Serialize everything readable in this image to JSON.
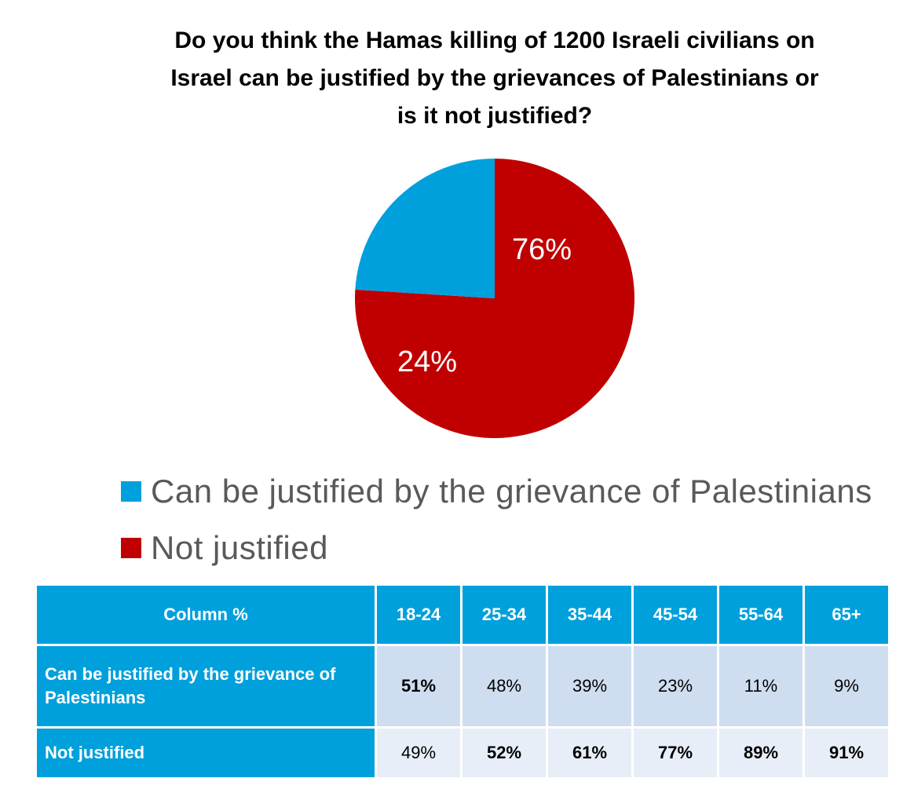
{
  "chart_data": {
    "type": "pie",
    "title_lines": [
      "Do you think the Hamas killing of 1200 Israeli civilians on",
      "Israel can be justified by the grievances of Palestinians or",
      "is it not justified?"
    ],
    "slices": [
      {
        "name": "Can be justified by the grievance of Palestinians",
        "value": 24,
        "label": "24%",
        "color": "#00A0DC"
      },
      {
        "name": "Not justified",
        "value": 76,
        "label": "76%",
        "color": "#C00000"
      }
    ],
    "legend_position": "bottom"
  },
  "table": {
    "header": [
      "Column %",
      "18-24",
      "25-34",
      "35-44",
      "45-54",
      "55-64",
      "65+"
    ],
    "rows": [
      {
        "label": "Can be justified by the grievance of Palestinians",
        "cells": [
          "51%",
          "48%",
          "39%",
          "23%",
          "11%",
          "9%"
        ],
        "bold": [
          true,
          false,
          false,
          false,
          false,
          false
        ]
      },
      {
        "label": "Not justified",
        "cells": [
          "49%",
          "52%",
          "61%",
          "77%",
          "89%",
          "91%"
        ],
        "bold": [
          false,
          true,
          true,
          true,
          true,
          true
        ]
      }
    ],
    "colors": {
      "header_bg": "#00A0DC",
      "row_a_bg": "#CFDDF0",
      "row_b_bg": "#E8EEF7"
    }
  }
}
